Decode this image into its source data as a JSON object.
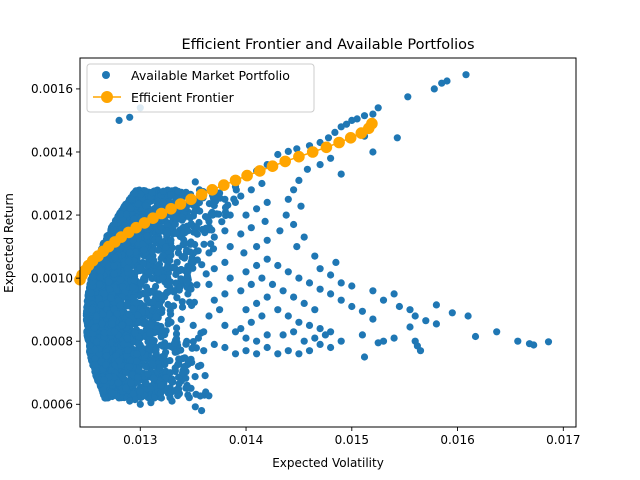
{
  "chart_data": {
    "type": "scatter",
    "title": "Efficient Frontier and Available Portfolios",
    "xlabel": "Expected Volatility",
    "ylabel": "Expected Return",
    "xlim": [
      0.01243,
      0.01712
    ],
    "ylim": [
      0.000528,
      0.001698
    ],
    "xticks": [
      "0.013",
      "0.014",
      "0.015",
      "0.016",
      "0.017"
    ],
    "xtick_values": [
      0.013,
      0.014,
      0.015,
      0.016,
      0.017
    ],
    "yticks": [
      "0.0006",
      "0.0008",
      "0.0010",
      "0.0012",
      "0.0014",
      "0.0016"
    ],
    "ytick_values": [
      0.0006,
      0.0008,
      0.001,
      0.0012,
      0.0014,
      0.0016
    ],
    "grid": false,
    "legend_position": "top-left",
    "series": [
      {
        "name": "Available Market Portfolio",
        "color": "#1f77b4",
        "marker": "circle",
        "points": [
          [
            0.01608,
            0.001645
          ],
          [
            0.0159,
            0.001625
          ],
          [
            0.01585,
            0.001618
          ],
          [
            0.01578,
            0.0016
          ],
          [
            0.01553,
            0.001575
          ],
          [
            0.01525,
            0.00154
          ],
          [
            0.0152,
            0.00152
          ],
          [
            0.01512,
            0.001515
          ],
          [
            0.01505,
            0.001505
          ],
          [
            0.015,
            0.0015
          ],
          [
            0.01495,
            0.001488
          ],
          [
            0.0149,
            0.00148
          ],
          [
            0.01484,
            0.001462
          ],
          [
            0.01478,
            0.001445
          ],
          [
            0.0147,
            0.00143
          ],
          [
            0.0146,
            0.00142
          ],
          [
            0.01448,
            0.00141
          ],
          [
            0.0144,
            0.001402
          ],
          [
            0.0143,
            0.001392
          ],
          [
            0.01543,
            0.001445
          ],
          [
            0.01512,
            0.00145
          ],
          [
            0.0152,
            0.0014
          ],
          [
            0.0149,
            0.00133
          ],
          [
            0.0148,
            0.00138
          ],
          [
            0.0147,
            0.00136
          ],
          [
            0.01458,
            0.001345
          ],
          [
            0.0145,
            0.00131
          ],
          [
            0.01445,
            0.00128
          ],
          [
            0.0144,
            0.00125
          ],
          [
            0.01452,
            0.001228
          ],
          [
            0.01438,
            0.0012
          ],
          [
            0.01445,
            0.00117
          ],
          [
            0.01432,
            0.00115
          ],
          [
            0.01455,
            0.00113
          ],
          [
            0.01448,
            0.0011
          ],
          [
            0.01465,
            0.00107
          ],
          [
            0.01485,
            0.00105
          ],
          [
            0.0147,
            0.00103
          ],
          [
            0.0148,
            0.00101
          ],
          [
            0.0149,
            0.000985
          ],
          [
            0.015,
            0.000975
          ],
          [
            0.0152,
            0.00096
          ],
          [
            0.0154,
            0.00095
          ],
          [
            0.0153,
            0.00093
          ],
          [
            0.01545,
            0.00091
          ],
          [
            0.01555,
            0.0009
          ],
          [
            0.0158,
            0.000915
          ],
          [
            0.01595,
            0.00089
          ],
          [
            0.0161,
            0.00088
          ],
          [
            0.0156,
            0.00088
          ],
          [
            0.0157,
            0.000865
          ],
          [
            0.0158,
            0.000855
          ],
          [
            0.01555,
            0.000845
          ],
          [
            0.0152,
            0.00087
          ],
          [
            0.0151,
            0.000895
          ],
          [
            0.015,
            0.00091
          ],
          [
            0.0149,
            0.00093
          ],
          [
            0.0148,
            0.00095
          ],
          [
            0.0147,
            0.000965
          ],
          [
            0.0146,
            0.000985
          ],
          [
            0.0145,
            0.001
          ],
          [
            0.0144,
            0.00102
          ],
          [
            0.0143,
            0.00104
          ],
          [
            0.01637,
            0.00083
          ],
          [
            0.01617,
            0.000815
          ],
          [
            0.01657,
            0.0008
          ],
          [
            0.01668,
            0.000792
          ],
          [
            0.01672,
            0.000788
          ],
          [
            0.01686,
            0.000798
          ],
          [
            0.0154,
            0.00081
          ],
          [
            0.0153,
            0.0008
          ],
          [
            0.0156,
            0.0008
          ],
          [
            0.01562,
            0.000785
          ],
          [
            0.01565,
            0.00077
          ],
          [
            0.01525,
            0.000795
          ],
          [
            0.01512,
            0.00075
          ],
          [
            0.0151,
            0.00082
          ],
          [
            0.0149,
            0.0008
          ],
          [
            0.0148,
            0.00078
          ],
          [
            0.0147,
            0.00079
          ],
          [
            0.0146,
            0.00077
          ],
          [
            0.0145,
            0.00076
          ],
          [
            0.0144,
            0.00077
          ],
          [
            0.0143,
            0.00076
          ],
          [
            0.0142,
            0.00078
          ],
          [
            0.0141,
            0.00076
          ],
          [
            0.014,
            0.00077
          ],
          [
            0.0139,
            0.00076
          ],
          [
            0.0138,
            0.00078
          ],
          [
            0.0137,
            0.00079
          ],
          [
            0.0136,
            0.00077
          ],
          [
            0.0135,
            0.00078
          ],
          [
            0.01345,
            0.00074
          ],
          [
            0.01355,
            0.00072
          ],
          [
            0.0134,
            0.0007
          ],
          [
            0.0133,
            0.00068
          ],
          [
            0.0132,
            0.00066
          ],
          [
            0.0131,
            0.00065
          ],
          [
            0.013,
            0.00064
          ],
          [
            0.01295,
            0.000615
          ],
          [
            0.0129,
            0.00061
          ],
          [
            0.013,
            0.0006
          ],
          [
            0.0131,
            0.000605
          ],
          [
            0.0132,
            0.00062
          ],
          [
            0.0133,
            0.00061
          ],
          [
            0.01352,
            0.000592
          ],
          [
            0.01358,
            0.00058
          ],
          [
            0.0129,
            0.00151
          ],
          [
            0.013,
            0.00154
          ],
          [
            0.0128,
            0.0015
          ],
          [
            0.0142,
            0.00136
          ],
          [
            0.0141,
            0.00134
          ],
          [
            0.014,
            0.00132
          ],
          [
            0.01415,
            0.0013
          ],
          [
            0.01405,
            0.00128
          ],
          [
            0.01395,
            0.00126
          ],
          [
            0.0142,
            0.00124
          ],
          [
            0.0141,
            0.00122
          ],
          [
            0.014,
            0.0012
          ],
          [
            0.01418,
            0.00118
          ],
          [
            0.01405,
            0.00116
          ],
          [
            0.01395,
            0.00114
          ],
          [
            0.0142,
            0.00112
          ],
          [
            0.0141,
            0.0011
          ],
          [
            0.01398,
            0.00108
          ],
          [
            0.0142,
            0.00106
          ],
          [
            0.0141,
            0.00104
          ],
          [
            0.014,
            0.00102
          ],
          [
            0.01415,
            0.001
          ],
          [
            0.01405,
            0.00098
          ],
          [
            0.01395,
            0.00096
          ],
          [
            0.0142,
            0.00094
          ],
          [
            0.0141,
            0.00092
          ],
          [
            0.014,
            0.0009
          ],
          [
            0.01415,
            0.00088
          ],
          [
            0.01405,
            0.00086
          ],
          [
            0.01395,
            0.00084
          ],
          [
            0.0142,
            0.00082
          ],
          [
            0.0141,
            0.0008
          ],
          [
            0.014,
            0.00081
          ],
          [
            0.0139,
            0.00083
          ],
          [
            0.0138,
            0.00085
          ],
          [
            0.01375,
            0.0009
          ],
          [
            0.0138,
            0.00095
          ],
          [
            0.01385,
            0.001
          ],
          [
            0.0138,
            0.00105
          ],
          [
            0.01385,
            0.0011
          ],
          [
            0.0138,
            0.00115
          ],
          [
            0.01385,
            0.0012
          ],
          [
            0.0138,
            0.00125
          ],
          [
            0.0139,
            0.00129
          ],
          [
            0.01375,
            0.00127
          ],
          [
            0.0137,
            0.00123
          ],
          [
            0.01365,
            0.00118
          ],
          [
            0.0137,
            0.00113
          ],
          [
            0.01365,
            0.00108
          ],
          [
            0.0137,
            0.00103
          ],
          [
            0.01365,
            0.00098
          ],
          [
            0.0137,
            0.00093
          ],
          [
            0.01365,
            0.00088
          ],
          [
            0.0136,
            0.00083
          ],
          [
            0.01355,
            0.00081
          ],
          [
            0.0143,
            0.0009
          ],
          [
            0.0144,
            0.00088
          ],
          [
            0.0145,
            0.00086
          ],
          [
            0.0146,
            0.00085
          ],
          [
            0.0147,
            0.00084
          ],
          [
            0.0148,
            0.00083
          ],
          [
            0.01465,
            0.0009
          ],
          [
            0.01455,
            0.00092
          ],
          [
            0.01445,
            0.00094
          ],
          [
            0.01435,
            0.00096
          ],
          [
            0.01425,
            0.00098
          ],
          [
            0.01435,
            0.00082
          ],
          [
            0.01445,
            0.00083
          ],
          [
            0.01455,
            0.0008
          ],
          [
            0.01465,
            0.00081
          ],
          [
            0.01475,
            0.00082
          ],
          [
            0.0135,
            0.00085
          ],
          [
            0.01345,
            0.00095
          ],
          [
            0.0135,
            0.00105
          ],
          [
            0.01345,
            0.00115
          ],
          [
            0.0135,
            0.00125
          ],
          [
            0.01352,
            0.001305
          ]
        ]
      },
      {
        "name": "Efficient Frontier",
        "color": "#ffa500",
        "marker": "circle-line",
        "points": [
          [
            0.01243,
            0.000995
          ],
          [
            0.01245,
            0.00101
          ],
          [
            0.01248,
            0.001025
          ],
          [
            0.01251,
            0.00104
          ],
          [
            0.01255,
            0.001055
          ],
          [
            0.0126,
            0.00107
          ],
          [
            0.01265,
            0.001085
          ],
          [
            0.0127,
            0.0011
          ],
          [
            0.01276,
            0.001115
          ],
          [
            0.01282,
            0.00113
          ],
          [
            0.01289,
            0.001145
          ],
          [
            0.01296,
            0.00116
          ],
          [
            0.01304,
            0.001175
          ],
          [
            0.01312,
            0.00119
          ],
          [
            0.0132,
            0.001205
          ],
          [
            0.01329,
            0.00122
          ],
          [
            0.01338,
            0.001235
          ],
          [
            0.01348,
            0.00125
          ],
          [
            0.01358,
            0.001265
          ],
          [
            0.01368,
            0.00128
          ],
          [
            0.01379,
            0.001295
          ],
          [
            0.0139,
            0.00131
          ],
          [
            0.01401,
            0.001325
          ],
          [
            0.01413,
            0.00134
          ],
          [
            0.01425,
            0.001355
          ],
          [
            0.01437,
            0.00137
          ],
          [
            0.0145,
            0.001385
          ],
          [
            0.01463,
            0.0014
          ],
          [
            0.01476,
            0.001415
          ],
          [
            0.01488,
            0.00143
          ],
          [
            0.01499,
            0.001445
          ],
          [
            0.01509,
            0.00146
          ],
          [
            0.01516,
            0.001475
          ],
          [
            0.01519,
            0.00149
          ]
        ]
      }
    ]
  }
}
